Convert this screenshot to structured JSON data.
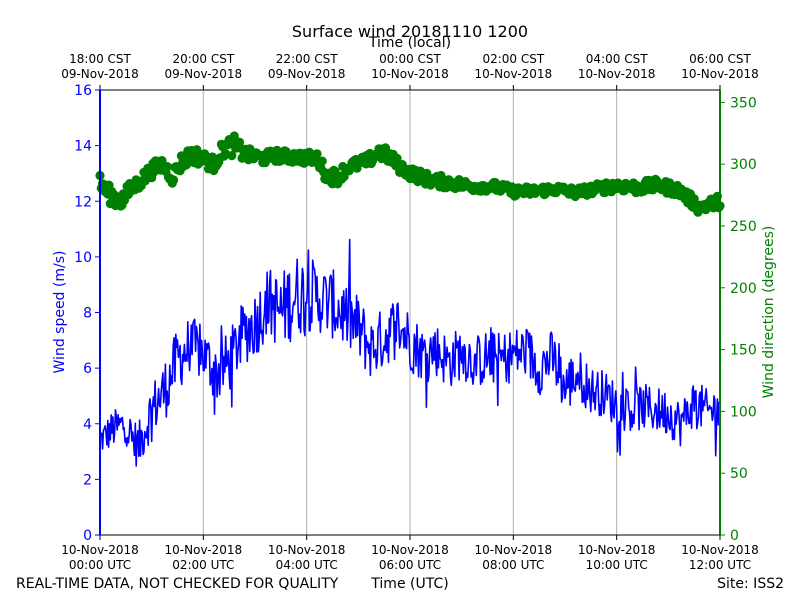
{
  "chart_data": {
    "type": "line",
    "title": "Surface wind 20181110 1200",
    "top_axis_label": "Time (local)",
    "xlabel": "Time (UTC)",
    "ylabel_left": "Wind speed (m/s)",
    "ylabel_right": "Wind direction (degrees)",
    "footer_left": "REAL-TIME DATA, NOT CHECKED FOR QUALITY",
    "footer_right": "Site: ISS2",
    "x_range_hours": [
      0,
      12
    ],
    "ylim_left": [
      0,
      16
    ],
    "ylim_right": [
      0,
      360
    ],
    "yticks_left": [
      0,
      2,
      4,
      6,
      8,
      10,
      12,
      14,
      16
    ],
    "yticks_right": [
      0,
      50,
      100,
      150,
      200,
      250,
      300,
      350
    ],
    "grid": "vertical",
    "colors": {
      "speed": "#0000ff",
      "direction": "#008000",
      "grid": "#b0b0b0",
      "axis": "#000000"
    },
    "bottom_ticks": [
      {
        "hour": 0,
        "date": "10-Nov-2018",
        "time": "00:00 UTC"
      },
      {
        "hour": 2,
        "date": "10-Nov-2018",
        "time": "02:00 UTC"
      },
      {
        "hour": 4,
        "date": "10-Nov-2018",
        "time": "04:00 UTC"
      },
      {
        "hour": 6,
        "date": "10-Nov-2018",
        "time": "06:00 UTC"
      },
      {
        "hour": 8,
        "date": "10-Nov-2018",
        "time": "08:00 UTC"
      },
      {
        "hour": 10,
        "date": "10-Nov-2018",
        "time": "10:00 UTC"
      },
      {
        "hour": 12,
        "date": "10-Nov-2018",
        "time": "12:00 UTC"
      }
    ],
    "top_ticks": [
      {
        "hour": 0,
        "time": "18:00 CST",
        "date": "09-Nov-2018"
      },
      {
        "hour": 2,
        "time": "20:00 CST",
        "date": "09-Nov-2018"
      },
      {
        "hour": 4,
        "time": "22:00 CST",
        "date": "09-Nov-2018"
      },
      {
        "hour": 6,
        "time": "00:00 CST",
        "date": "10-Nov-2018"
      },
      {
        "hour": 8,
        "time": "02:00 CST",
        "date": "10-Nov-2018"
      },
      {
        "hour": 10,
        "time": "04:00 CST",
        "date": "10-Nov-2018"
      },
      {
        "hour": 12,
        "time": "06:00 CST",
        "date": "10-Nov-2018"
      }
    ],
    "series": [
      {
        "name": "Wind speed",
        "axis": "left",
        "style": "line",
        "x_hours": [
          0,
          0.25,
          0.5,
          0.6,
          0.75,
          1.0,
          1.25,
          1.5,
          1.75,
          2.0,
          2.25,
          2.5,
          2.75,
          3.0,
          3.25,
          3.5,
          3.75,
          4.0,
          4.25,
          4.5,
          4.75,
          5.0,
          5.25,
          5.5,
          5.75,
          6.0,
          6.25,
          6.5,
          6.75,
          7.0,
          7.25,
          7.5,
          7.75,
          8.0,
          8.25,
          8.5,
          8.75,
          9.0,
          9.25,
          9.5,
          9.75,
          10.0,
          10.25,
          10.5,
          10.75,
          11.0,
          11.25,
          11.5,
          11.75,
          12.0
        ],
        "values": [
          3.4,
          3.8,
          4.0,
          3.5,
          3.2,
          4.5,
          5.2,
          6.3,
          6.8,
          6.5,
          5.8,
          6.2,
          7.2,
          7.6,
          8.4,
          8.0,
          8.6,
          8.7,
          8.5,
          8.3,
          7.9,
          7.4,
          6.7,
          7.1,
          7.6,
          7.0,
          6.5,
          6.7,
          6.2,
          6.6,
          6.2,
          6.4,
          6.3,
          6.5,
          6.6,
          6.0,
          6.4,
          5.3,
          5.8,
          5.2,
          5.1,
          4.7,
          4.5,
          4.6,
          4.5,
          4.4,
          4.0,
          4.8,
          4.4,
          4.6
        ],
        "amplitude": [
          0.4,
          0.5,
          0.5,
          0.6,
          0.6,
          0.7,
          0.8,
          0.8,
          0.8,
          0.7,
          0.8,
          0.8,
          0.8,
          0.9,
          0.9,
          1.0,
          1.1,
          1.0,
          0.9,
          0.9,
          0.9,
          0.9,
          0.8,
          0.8,
          0.8,
          0.8,
          0.7,
          0.7,
          0.7,
          0.7,
          0.7,
          0.7,
          0.7,
          0.7,
          0.7,
          0.7,
          0.7,
          0.7,
          0.7,
          0.6,
          0.6,
          0.6,
          0.6,
          0.6,
          0.6,
          0.6,
          0.6,
          0.6,
          0.6,
          0.6
        ]
      },
      {
        "name": "Wind direction",
        "axis": "right",
        "style": "markers",
        "x_hours": [
          0,
          0.2,
          0.4,
          0.6,
          0.8,
          1.0,
          1.2,
          1.4,
          1.6,
          1.8,
          2.0,
          2.2,
          2.4,
          2.6,
          2.8,
          3.0,
          3.2,
          3.4,
          3.6,
          3.8,
          4.0,
          4.2,
          4.4,
          4.6,
          4.8,
          5.0,
          5.2,
          5.4,
          5.6,
          5.8,
          6.0,
          6.4,
          6.8,
          7.2,
          7.6,
          8.0,
          8.4,
          8.8,
          9.2,
          9.6,
          10.0,
          10.4,
          10.8,
          11.2,
          11.6,
          12.0
        ],
        "values": [
          285,
          275,
          270,
          280,
          287,
          295,
          300,
          290,
          303,
          308,
          304,
          300,
          313,
          315,
          308,
          306,
          305,
          307,
          306,
          306,
          305,
          305,
          290,
          290,
          298,
          300,
          303,
          310,
          306,
          298,
          293,
          287,
          285,
          282,
          282,
          278,
          278,
          280,
          277,
          280,
          283,
          281,
          283,
          279,
          265,
          270
        ],
        "amplitude": [
          7,
          7,
          7,
          6,
          6,
          6,
          6,
          6,
          7,
          7,
          6,
          6,
          7,
          8,
          6,
          5,
          5,
          5,
          5,
          5,
          5,
          5,
          6,
          6,
          5,
          5,
          5,
          6,
          6,
          5,
          5,
          5,
          5,
          4,
          4,
          4,
          4,
          4,
          4,
          4,
          5,
          5,
          5,
          5,
          5,
          5
        ]
      }
    ]
  }
}
